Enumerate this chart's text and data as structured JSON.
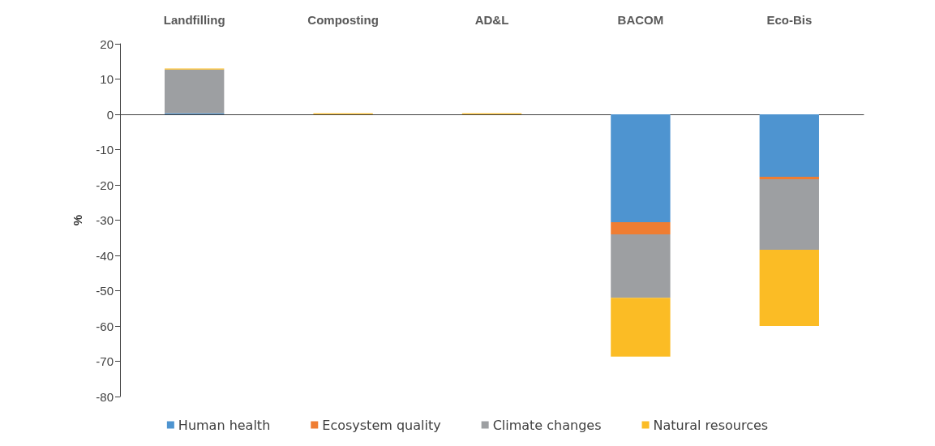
{
  "chart_data": {
    "type": "bar",
    "stacked": true,
    "ylabel": "%",
    "categories": [
      "Landfilling",
      "Composting",
      "AD&L",
      "BACOM",
      "Eco-Bis"
    ],
    "series": [
      {
        "name": "Human health",
        "color": "#4e94d0",
        "values": [
          0.3,
          0,
          0,
          -30.6,
          -17.7
        ]
      },
      {
        "name": "Ecosystem quality",
        "color": "#ef7d32",
        "values": [
          0,
          0,
          0,
          -3.4,
          -0.7
        ]
      },
      {
        "name": "Climate changes",
        "color": "#9d9fa2",
        "values": [
          12.4,
          0,
          0,
          -18,
          -20
        ]
      },
      {
        "name": "Natural resources",
        "color": "#fbbc25",
        "values": [
          0.3,
          0.3,
          0.3,
          -16.7,
          -21.6
        ]
      }
    ],
    "ylim": [
      -80,
      20
    ],
    "yticks": [
      -80,
      -70,
      -60,
      -50,
      -40,
      -30,
      -20,
      -10,
      0,
      10,
      20
    ],
    "legend": "bottom"
  }
}
